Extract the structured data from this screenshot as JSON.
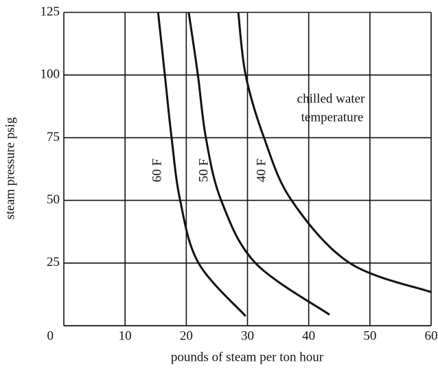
{
  "chart_data": {
    "type": "line",
    "x_label": "pounds of steam per ton hour",
    "y_label": "steam pressure psig",
    "annotations": [
      "chilled water",
      "temperature"
    ],
    "xlim": [
      0,
      60
    ],
    "ylim": [
      0,
      125
    ],
    "xticks": [
      10,
      20,
      30,
      40,
      50,
      60
    ],
    "yticks": [
      0,
      25,
      50,
      75,
      100,
      125
    ],
    "grid": true,
    "series": [
      {
        "name": "60 F",
        "color": "#111111",
        "x": [
          15.4,
          16.5,
          17.6,
          19.0,
          22.0,
          29.7
        ],
        "values": [
          125,
          100,
          75,
          50,
          25,
          3.8
        ]
      },
      {
        "name": "50 F",
        "color": "#111111",
        "x": [
          20.4,
          21.9,
          23.2,
          25.7,
          31.3,
          43.4
        ],
        "values": [
          125,
          100,
          75,
          50,
          25,
          4.4
        ]
      },
      {
        "name": "40 F",
        "color": "#111111",
        "x": [
          28.5,
          29.7,
          32.7,
          37.2,
          46.7,
          60
        ],
        "values": [
          125,
          100,
          75,
          50,
          25,
          13.4
        ]
      }
    ]
  }
}
